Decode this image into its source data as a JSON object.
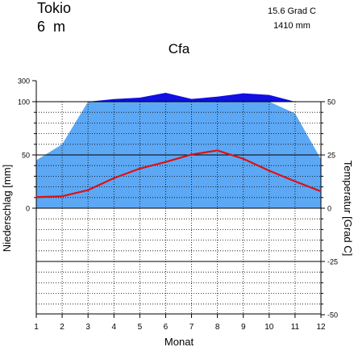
{
  "chart_data": {
    "type": "area",
    "station": "Tokio",
    "elevation": "6  m",
    "annual_temperature": "15.6 Grad C",
    "annual_precipitation": "1410 mm",
    "climate_class": "Cfa",
    "xlabel": "Monat",
    "ylabel_left": "Niederschlag [mm]",
    "ylabel_right": "Temperatur [Grad C]",
    "x": [
      1,
      2,
      3,
      4,
      5,
      6,
      7,
      8,
      9,
      10,
      11,
      12
    ],
    "x_ticks": [
      "1",
      "2",
      "3",
      "4",
      "5",
      "6",
      "7",
      "8",
      "9",
      "10",
      "11",
      "12"
    ],
    "y_left_ticks": [
      "0",
      "50",
      "100",
      "300"
    ],
    "y_right_ticks": [
      "50",
      "25",
      "0",
      "-25",
      "-50"
    ],
    "ylim_temperature": [
      -50,
      50
    ],
    "precipitation_mm": [
      45,
      60,
      100,
      125,
      138,
      185,
      126,
      148,
      180,
      164,
      89,
      46
    ],
    "temperature_c": [
      5.2,
      5.6,
      8.5,
      14.1,
      18.6,
      21.7,
      25.2,
      27.1,
      23.2,
      17.6,
      12.6,
      7.9
    ],
    "series": [
      {
        "name": "Niederschlag",
        "axis": "left"
      },
      {
        "name": "Temperatur",
        "axis": "right"
      }
    ],
    "colors": {
      "precip_fill": "#5ca8f5",
      "precip_excess": "#1010e0",
      "temperature_line": "#e01010"
    },
    "grid": true
  }
}
